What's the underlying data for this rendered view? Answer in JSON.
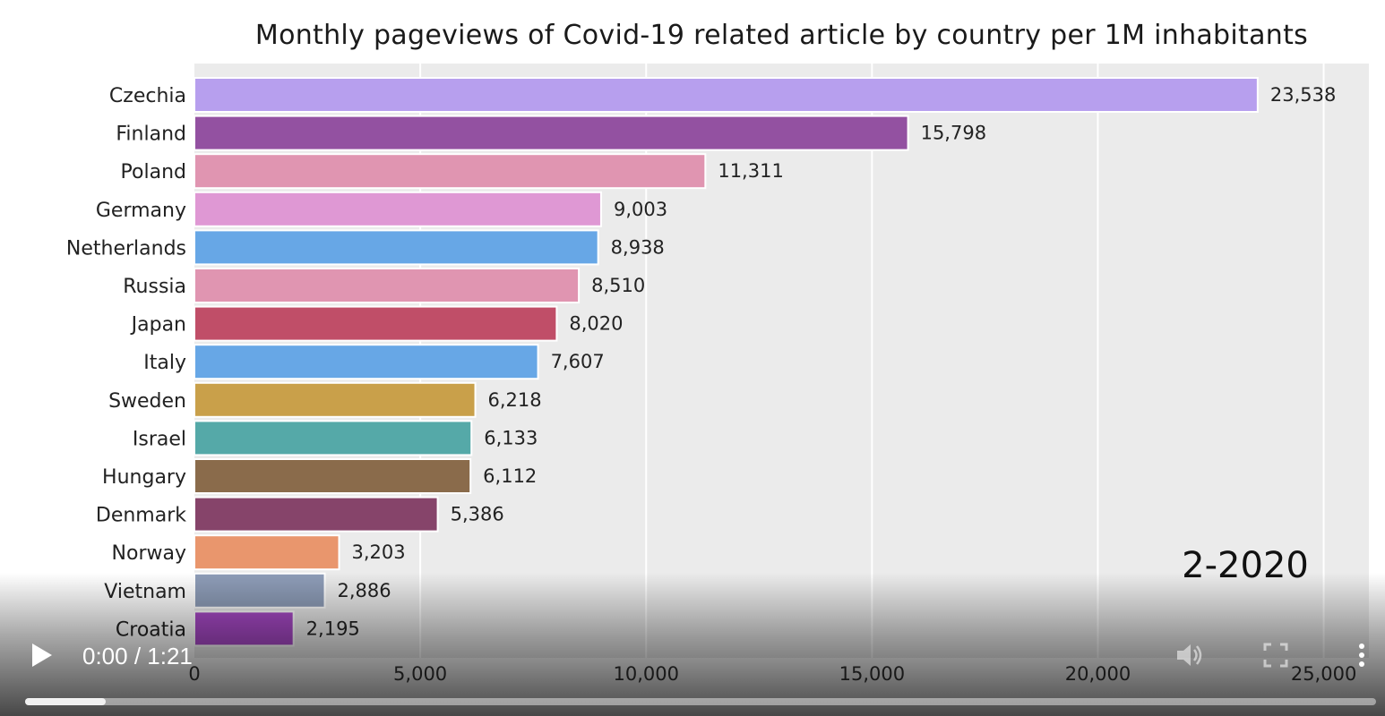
{
  "player": {
    "current_time": "0:00",
    "separator": " / ",
    "duration": "1:21",
    "buffered_fraction": 0.06,
    "icons": {
      "play": "play-icon",
      "volume": "volume-icon",
      "fullscreen": "fullscreen-icon",
      "more": "more-options-icon"
    }
  },
  "period_label": "2-2020",
  "chart_data": {
    "type": "bar",
    "orientation": "horizontal",
    "title": "Monthly pageviews of Covid-19 related article by country per 1M inhabitants",
    "xlim": [
      0,
      26000
    ],
    "xticks": [
      0,
      5000,
      10000,
      15000,
      20000,
      25000
    ],
    "xtick_labels": [
      "0",
      "5,000",
      "10,000",
      "15,000",
      "20,000",
      "25,000"
    ],
    "grid": true,
    "background": "#ebebeb",
    "categories": [
      "Czechia",
      "Finland",
      "Poland",
      "Germany",
      "Netherlands",
      "Russia",
      "Japan",
      "Italy",
      "Sweden",
      "Israel",
      "Hungary",
      "Denmark",
      "Norway",
      "Vietnam",
      "Croatia"
    ],
    "values": [
      23538,
      15798,
      11311,
      9003,
      8938,
      8510,
      8020,
      7607,
      6218,
      6133,
      6112,
      5386,
      3203,
      2886,
      2195
    ],
    "value_labels": [
      "23,538",
      "15,798",
      "11,311",
      "9,003",
      "8,938",
      "8,510",
      "8,020",
      "7,607",
      "6,218",
      "6,133",
      "6,112",
      "5,386",
      "3,203",
      "2,886",
      "2,195"
    ],
    "colors": [
      "#b79fee",
      "#9351a1",
      "#e095b1",
      "#df98d4",
      "#67a7e6",
      "#e095b1",
      "#c04e68",
      "#67a7e6",
      "#c9a04a",
      "#55a9a8",
      "#8a6b4b",
      "#86446a",
      "#e9966d",
      "#8e9db8",
      "#a849c7"
    ]
  }
}
